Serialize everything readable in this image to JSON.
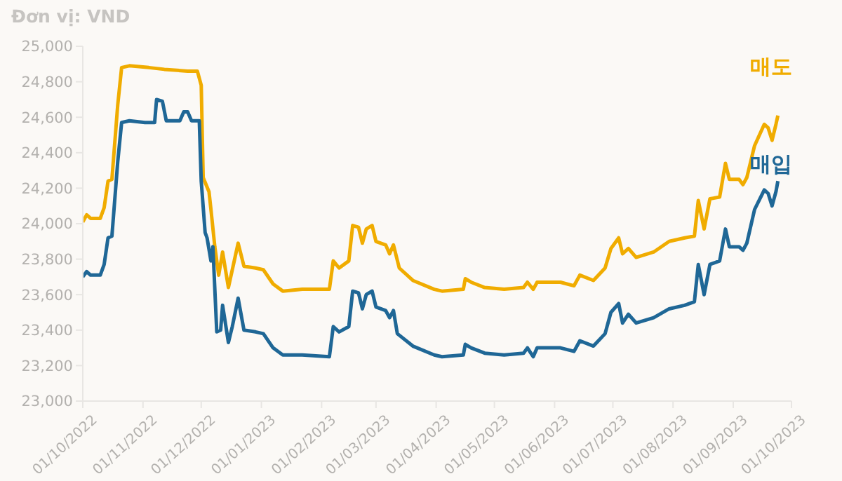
{
  "chart_data": {
    "type": "line",
    "ylabel": "Đơn vị: VND",
    "grid": false,
    "legend": false,
    "marker": "none",
    "line_style": "solid",
    "xlim": [
      "2022-10-01",
      "2023-10-01"
    ],
    "xticks": [
      {
        "value": "2022-10-01",
        "label": "01/10/2022"
      },
      {
        "value": "2022-11-01",
        "label": "01/11/2022"
      },
      {
        "value": "2022-12-01",
        "label": "01/12/2022"
      },
      {
        "value": "2023-01-01",
        "label": "01/01/2023"
      },
      {
        "value": "2023-02-01",
        "label": "01/02/2023"
      },
      {
        "value": "2023-03-01",
        "label": "01/03/2023"
      },
      {
        "value": "2023-04-01",
        "label": "01/04/2023"
      },
      {
        "value": "2023-05-01",
        "label": "01/05/2023"
      },
      {
        "value": "2023-06-01",
        "label": "01/06/2023"
      },
      {
        "value": "2023-07-01",
        "label": "01/07/2023"
      },
      {
        "value": "2023-08-01",
        "label": "01/08/2023"
      },
      {
        "value": "2023-09-01",
        "label": "01/09/2023"
      },
      {
        "value": "2023-10-01",
        "label": "01/10/2023"
      }
    ],
    "ylim": [
      23000,
      25000
    ],
    "yticks": [
      {
        "value": 23000,
        "label": "23,000"
      },
      {
        "value": 23200,
        "label": "23,200"
      },
      {
        "value": 23400,
        "label": "23,400"
      },
      {
        "value": 23600,
        "label": "23,600"
      },
      {
        "value": 23800,
        "label": "23,800"
      },
      {
        "value": 24000,
        "label": "24,000"
      },
      {
        "value": 24200,
        "label": "24,200"
      },
      {
        "value": 24400,
        "label": "24,400"
      },
      {
        "value": 24600,
        "label": "24,600"
      },
      {
        "value": 24800,
        "label": "24,800"
      },
      {
        "value": 25000,
        "label": "25,000"
      }
    ],
    "series": [
      {
        "name": "매도",
        "color": "#f0ac00",
        "x": [
          "2022-10-01",
          "2022-10-03",
          "2022-10-05",
          "2022-10-10",
          "2022-10-12",
          "2022-10-14",
          "2022-10-16",
          "2022-10-19",
          "2022-10-21",
          "2022-10-25",
          "2022-11-04",
          "2022-11-12",
          "2022-11-24",
          "2022-11-29",
          "2022-12-01",
          "2022-12-02",
          "2022-12-05",
          "2022-12-06",
          "2022-12-08",
          "2022-12-10",
          "2022-12-12",
          "2022-12-15",
          "2022-12-18",
          "2022-12-20",
          "2022-12-23",
          "2022-12-29",
          "2023-01-02",
          "2023-01-07",
          "2023-01-12",
          "2023-01-22",
          "2023-02-05",
          "2023-02-07",
          "2023-02-10",
          "2023-02-15",
          "2023-02-17",
          "2023-02-20",
          "2023-02-22",
          "2023-02-24",
          "2023-02-27",
          "2023-03-01",
          "2023-03-06",
          "2023-03-08",
          "2023-03-10",
          "2023-03-13",
          "2023-03-20",
          "2023-03-31",
          "2023-04-04",
          "2023-04-15",
          "2023-04-16",
          "2023-04-19",
          "2023-04-26",
          "2023-05-06",
          "2023-05-16",
          "2023-05-18",
          "2023-05-21",
          "2023-05-23",
          "2023-06-04",
          "2023-06-11",
          "2023-06-14",
          "2023-06-21",
          "2023-06-27",
          "2023-06-30",
          "2023-07-04",
          "2023-07-06",
          "2023-07-09",
          "2023-07-13",
          "2023-07-22",
          "2023-07-30",
          "2023-08-07",
          "2023-08-12",
          "2023-08-14",
          "2023-08-17",
          "2023-08-20",
          "2023-08-25",
          "2023-08-28",
          "2023-08-30",
          "2023-09-04",
          "2023-09-06",
          "2023-09-08",
          "2023-09-12",
          "2023-09-17",
          "2023-09-19",
          "2023-09-21",
          "2023-09-23",
          "2023-09-24"
        ],
        "values": [
          24010,
          24050,
          24030,
          24030,
          24090,
          24240,
          24250,
          24670,
          24880,
          24890,
          24880,
          24870,
          24860,
          24860,
          24780,
          24260,
          24180,
          24080,
          23870,
          23710,
          23840,
          23640,
          23790,
          23890,
          23760,
          23750,
          23740,
          23660,
          23620,
          23630,
          23630,
          23790,
          23750,
          23790,
          23990,
          23980,
          23890,
          23970,
          23990,
          23900,
          23880,
          23830,
          23880,
          23750,
          23680,
          23630,
          23620,
          23630,
          23690,
          23670,
          23640,
          23630,
          23640,
          23670,
          23630,
          23670,
          23670,
          23650,
          23710,
          23680,
          23750,
          23860,
          23920,
          23830,
          23860,
          23810,
          23840,
          23900,
          23920,
          23930,
          24130,
          23970,
          24140,
          24150,
          24340,
          24250,
          24250,
          24220,
          24260,
          24440,
          24560,
          24540,
          24470,
          24560,
          24610
        ]
      },
      {
        "name": "매입",
        "color": "#1f6796",
        "x": [
          "2022-10-01",
          "2022-10-03",
          "2022-10-05",
          "2022-10-10",
          "2022-10-12",
          "2022-10-14",
          "2022-10-16",
          "2022-10-19",
          "2022-10-21",
          "2022-10-25",
          "2022-11-02",
          "2022-11-07",
          "2022-11-08",
          "2022-11-11",
          "2022-11-13",
          "2022-11-20",
          "2022-11-22",
          "2022-11-24",
          "2022-11-26",
          "2022-11-30",
          "2022-12-01",
          "2022-12-03",
          "2022-12-04",
          "2022-12-06",
          "2022-12-07",
          "2022-12-09",
          "2022-12-11",
          "2022-12-12",
          "2022-12-15",
          "2022-12-17",
          "2022-12-20",
          "2022-12-23",
          "2022-12-29",
          "2023-01-02",
          "2023-01-07",
          "2023-01-12",
          "2023-01-22",
          "2023-02-05",
          "2023-02-07",
          "2023-02-10",
          "2023-02-15",
          "2023-02-17",
          "2023-02-20",
          "2023-02-22",
          "2023-02-24",
          "2023-02-27",
          "2023-03-01",
          "2023-03-06",
          "2023-03-08",
          "2023-03-10",
          "2023-03-12",
          "2023-03-20",
          "2023-03-31",
          "2023-04-04",
          "2023-04-15",
          "2023-04-16",
          "2023-04-19",
          "2023-04-26",
          "2023-05-06",
          "2023-05-16",
          "2023-05-18",
          "2023-05-21",
          "2023-05-23",
          "2023-06-04",
          "2023-06-11",
          "2023-06-14",
          "2023-06-21",
          "2023-06-27",
          "2023-06-30",
          "2023-07-04",
          "2023-07-06",
          "2023-07-09",
          "2023-07-13",
          "2023-07-22",
          "2023-07-30",
          "2023-08-07",
          "2023-08-12",
          "2023-08-14",
          "2023-08-17",
          "2023-08-20",
          "2023-08-25",
          "2023-08-28",
          "2023-08-30",
          "2023-09-04",
          "2023-09-06",
          "2023-09-08",
          "2023-09-12",
          "2023-09-17",
          "2023-09-19",
          "2023-09-21",
          "2023-09-23",
          "2023-09-24"
        ],
        "values": [
          23700,
          23730,
          23710,
          23710,
          23770,
          23920,
          23930,
          24350,
          24570,
          24580,
          24570,
          24570,
          24700,
          24690,
          24580,
          24580,
          24630,
          24630,
          24580,
          24580,
          24240,
          23950,
          23920,
          23790,
          23870,
          23390,
          23400,
          23540,
          23330,
          23420,
          23580,
          23400,
          23390,
          23380,
          23300,
          23260,
          23260,
          23250,
          23420,
          23390,
          23420,
          23620,
          23610,
          23520,
          23600,
          23620,
          23530,
          23510,
          23470,
          23510,
          23380,
          23310,
          23260,
          23250,
          23260,
          23320,
          23300,
          23270,
          23260,
          23270,
          23300,
          23250,
          23300,
          23300,
          23280,
          23340,
          23310,
          23380,
          23500,
          23550,
          23440,
          23490,
          23440,
          23470,
          23520,
          23540,
          23560,
          23770,
          23600,
          23770,
          23790,
          23970,
          23870,
          23870,
          23850,
          23890,
          24080,
          24190,
          24170,
          24100,
          24180,
          24240
        ]
      }
    ]
  }
}
